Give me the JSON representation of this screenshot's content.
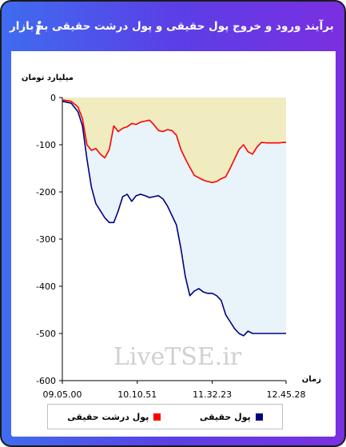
{
  "header": {
    "title": "برآیند ورود و خروج پول حقیقی و پول درشت حقیقی به بازار",
    "link_icon": "link-icon",
    "info_icon_glyph": "i"
  },
  "watermark": "LiveTSE.ir",
  "chart_data": {
    "type": "line",
    "ylabel": "میلیارد تومان",
    "xlabel": "زمان",
    "ylim": [
      -600,
      0
    ],
    "yticks": [
      0,
      -100,
      -200,
      -300,
      -400,
      -500,
      -600
    ],
    "xticks": [
      "09.05.00",
      "10.10.51",
      "11.32.23",
      "12.45.28"
    ],
    "x": [
      0,
      4,
      7,
      9,
      11,
      13,
      15,
      17,
      19,
      21,
      23,
      25,
      27,
      29,
      31,
      33,
      35,
      37,
      39,
      41,
      43,
      45,
      47,
      49,
      51,
      53,
      55,
      57,
      59,
      61,
      63,
      65,
      67,
      69,
      71,
      73,
      75,
      77,
      79,
      81,
      83,
      85,
      87,
      89,
      91,
      93,
      95,
      97,
      99,
      100
    ],
    "series": [
      {
        "name": "پول درشت حقیقی",
        "color": "#ff0000",
        "values": [
          -5,
          -8,
          -20,
          -45,
          -100,
          -112,
          -108,
          -120,
          -128,
          -110,
          -60,
          -72,
          -65,
          -62,
          -55,
          -57,
          -52,
          -50,
          -48,
          -58,
          -70,
          -72,
          -68,
          -70,
          -80,
          -110,
          -130,
          -148,
          -165,
          -170,
          -175,
          -178,
          -180,
          -178,
          -172,
          -168,
          -150,
          -130,
          -110,
          -100,
          -115,
          -120,
          -105,
          -95,
          -96,
          -96,
          -96,
          -96,
          -95,
          -95
        ]
      },
      {
        "name": "پول حقیقی",
        "color": "#000080",
        "values": [
          -8,
          -12,
          -30,
          -60,
          -130,
          -190,
          -225,
          -240,
          -255,
          -265,
          -265,
          -240,
          -210,
          -205,
          -220,
          -208,
          -205,
          -208,
          -212,
          -210,
          -208,
          -215,
          -230,
          -250,
          -270,
          -320,
          -380,
          -420,
          -410,
          -405,
          -412,
          -415,
          -415,
          -420,
          -430,
          -460,
          -475,
          -490,
          -500,
          -505,
          -495,
          -500,
          -500,
          -500,
          -500,
          -500,
          -500,
          -500,
          -500,
          -500
        ]
      }
    ]
  }
}
